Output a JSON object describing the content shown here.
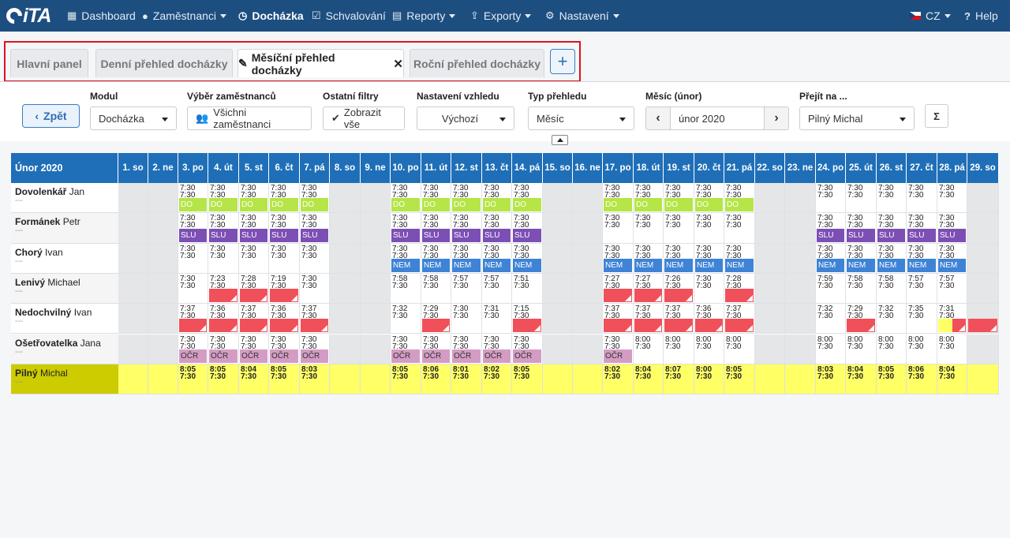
{
  "app": {
    "logo": "iTA"
  },
  "nav": {
    "dashboard": "Dashboard",
    "employees": "Zaměstnanci",
    "attendance": "Docházka",
    "approval": "Schvalování",
    "reports": "Reporty",
    "exports": "Exporty",
    "settings": "Nastavení",
    "lang": "CZ",
    "help": "Help"
  },
  "tabs": {
    "main": "Hlavní panel",
    "daily": "Denní přehled docházky",
    "monthly": "Měsíční přehled docházky",
    "yearly": "Roční přehled docházky",
    "add": "+"
  },
  "filters": {
    "back": "Zpět",
    "module_label": "Modul",
    "module_value": "Docházka",
    "employees_label": "Výběr zaměstnanců",
    "employees_value": "Všichni zaměstnanci",
    "other_label": "Ostatní filtry",
    "other_value": "Zobrazit vše",
    "view_label": "Nastavení vzhledu",
    "view_value": "Výchozí",
    "type_label": "Typ přehledu",
    "type_value": "Měsíc",
    "month_label": "Měsíc (únor)",
    "month_value": "únor 2020",
    "goto_label": "Přejít na ...",
    "goto_value": "Pilný Michal",
    "sum": "Σ"
  },
  "colors": {
    "DO": "#b5e546",
    "SLU": "#7c4fb5",
    "NEM": "#3e83d6",
    "OCR": "#d49cc4",
    "red": "#f0505a",
    "yellow": "#ffff66",
    "weekend": "#e5e6e8",
    "header": "#1f6fb8"
  },
  "grid": {
    "title": "Únor 2020",
    "days": [
      "1. so",
      "2. ne",
      "3. po",
      "4. út",
      "5. st",
      "6. čt",
      "7. pá",
      "8. so",
      "9. ne",
      "10. po",
      "11. út",
      "12. st",
      "13. čt",
      "14. pá",
      "15. so",
      "16. ne",
      "17. po",
      "18. út",
      "19. st",
      "20. čt",
      "21. pá",
      "22. so",
      "23. ne",
      "24. po",
      "25. út",
      "26. st",
      "27. čt",
      "28. pá",
      "29. so"
    ],
    "rows": [
      {
        "last": "Dovolenkář",
        "first": "Jan",
        "sub": "---",
        "cells": [
          "",
          "",
          "7:30\n7:30|DO",
          "7:30\n7:30|DO",
          "7:30\n7:30|DO",
          "7:30\n7:30|DO",
          "7:30\n7:30|DO",
          "",
          "",
          "7:30\n7:30|DO",
          "7:30\n7:30|DO",
          "7:30\n7:30|DO",
          "7:30\n7:30|DO",
          "7:30\n7:30|DO",
          "",
          "",
          "7:30\n7:30|DO",
          "7:30\n7:30|DO",
          "7:30\n7:30|DO",
          "7:30\n7:30|DO",
          "7:30\n7:30|DO",
          "",
          "",
          "7:30\n7:30",
          "7:30\n7:30",
          "7:30\n7:30",
          "7:30\n7:30",
          "7:30\n7:30",
          ""
        ]
      },
      {
        "last": "Formánek",
        "first": "Petr",
        "sub": "---",
        "cells": [
          "",
          "",
          "7:30\n7:30|SLU",
          "7:30\n7:30|SLU",
          "7:30\n7:30|SLU",
          "7:30\n7:30|SLU",
          "7:30\n7:30|SLU",
          "",
          "",
          "7:30\n7:30|SLU",
          "7:30\n7:30|SLU",
          "7:30\n7:30|SLU",
          "7:30\n7:30|SLU",
          "7:30\n7:30|SLU",
          "",
          "",
          "7:30\n7:30",
          "7:30\n7:30",
          "7:30\n7:30",
          "7:30\n7:30",
          "7:30\n7:30",
          "",
          "",
          "7:30\n7:30|SLU",
          "7:30\n7:30|SLU",
          "7:30\n7:30|SLU",
          "7:30\n7:30|SLU",
          "7:30\n7:30|SLU",
          ""
        ]
      },
      {
        "last": "Chorý",
        "first": "Ivan",
        "sub": "---",
        "cells": [
          "",
          "",
          "7:30\n7:30",
          "7:30\n7:30",
          "7:30\n7:30",
          "7:30\n7:30",
          "7:30\n7:30",
          "",
          "",
          "7:30\n7:30|NEM",
          "7:30\n7:30|NEM",
          "7:30\n7:30|NEM",
          "7:30\n7:30|NEM",
          "7:30\n7:30|NEM",
          "",
          "",
          "7:30\n7:30|NEM",
          "7:30\n7:30|NEM",
          "7:30\n7:30|NEM",
          "7:30\n7:30|NEM",
          "7:30\n7:30|NEM",
          "",
          "",
          "7:30\n7:30|NEM",
          "7:30\n7:30|NEM",
          "7:30\n7:30|NEM",
          "7:30\n7:30|NEM",
          "7:30\n7:30|NEM",
          ""
        ]
      },
      {
        "last": "Lenivý",
        "first": "Michael",
        "sub": "---",
        "cells": [
          "",
          "",
          "7:30\n7:30",
          "7:23\n7:30|R",
          "7:28\n7:30|R",
          "7:19\n7:30|R",
          "7:30\n7:30",
          "",
          "",
          "7:58\n7:30",
          "7:58\n7:30",
          "7:57\n7:30",
          "7:57\n7:30",
          "7:51\n7:30",
          "",
          "",
          "7:27\n7:30|R",
          "7:27\n7:30|R",
          "7:26\n7:30|R",
          "7:30\n7:30",
          "7:28\n7:30|R",
          "",
          "",
          "7:59\n7:30",
          "7:58\n7:30",
          "7:58\n7:30",
          "7:57\n7:30",
          "7:57\n7:30",
          ""
        ]
      },
      {
        "last": "Nedochvilný",
        "first": "Ivan",
        "sub": "---",
        "cells": [
          "",
          "",
          "7:37\n7:30|R",
          "7:36\n7:30|R",
          "7:37\n7:30|R",
          "7:36\n7:30|R",
          "7:37\n7:30|R",
          "",
          "",
          "7:32\n7:30",
          "7:29\n7:30|R",
          "7:30\n7:30",
          "7:31\n7:30",
          "7:15\n7:30|R",
          "",
          "",
          "7:37\n7:30|R",
          "7:37\n7:30|R",
          "7:37\n7:30|R",
          "7:36\n7:30|R",
          "7:37\n7:30|R",
          "",
          "",
          "7:32\n7:30",
          "7:29\n7:30|R",
          "7:32\n7:30",
          "7:35\n7:30",
          "7:31\n7:30|YR",
          "|R"
        ]
      },
      {
        "last": "Ošetřovatelka",
        "first": "Jana",
        "sub": "---",
        "cells": [
          "",
          "",
          "7:30\n7:30|OČR",
          "7:30\n7:30|OČR",
          "7:30\n7:30|OČR",
          "7:30\n7:30|OČR",
          "7:30\n7:30|OČR",
          "",
          "",
          "7:30\n7:30|OČR",
          "7:30\n7:30|OČR",
          "7:30\n7:30|OČR",
          "7:30\n7:30|OČR",
          "7:30\n7:30|OČR",
          "",
          "",
          "7:30\n7:30|OČR",
          "8:00\n7:30",
          "8:00\n7:30",
          "8:00\n7:30",
          "8:00\n7:30",
          "",
          "",
          "8:00\n7:30",
          "8:00\n7:30",
          "8:00\n7:30",
          "8:00\n7:30",
          "8:00\n7:30",
          ""
        ]
      },
      {
        "last": "Pilný",
        "first": "Michal",
        "sub": "---",
        "highlight": true,
        "cells": [
          "",
          "",
          "8:05\n7:30",
          "8:05\n7:30",
          "8:04\n7:30",
          "8:05\n7:30",
          "8:03\n7:30",
          "",
          "",
          "8:05\n7:30",
          "8:06\n7:30",
          "8:01\n7:30",
          "8:02\n7:30",
          "8:05\n7:30",
          "",
          "",
          "8:02\n7:30",
          "8:04\n7:30",
          "8:07\n7:30",
          "8:00\n7:30",
          "8:05\n7:30",
          "",
          "",
          "8:03\n7:30",
          "8:04\n7:30",
          "8:05\n7:30",
          "8:06\n7:30",
          "8:04\n7:30",
          ""
        ]
      }
    ]
  }
}
